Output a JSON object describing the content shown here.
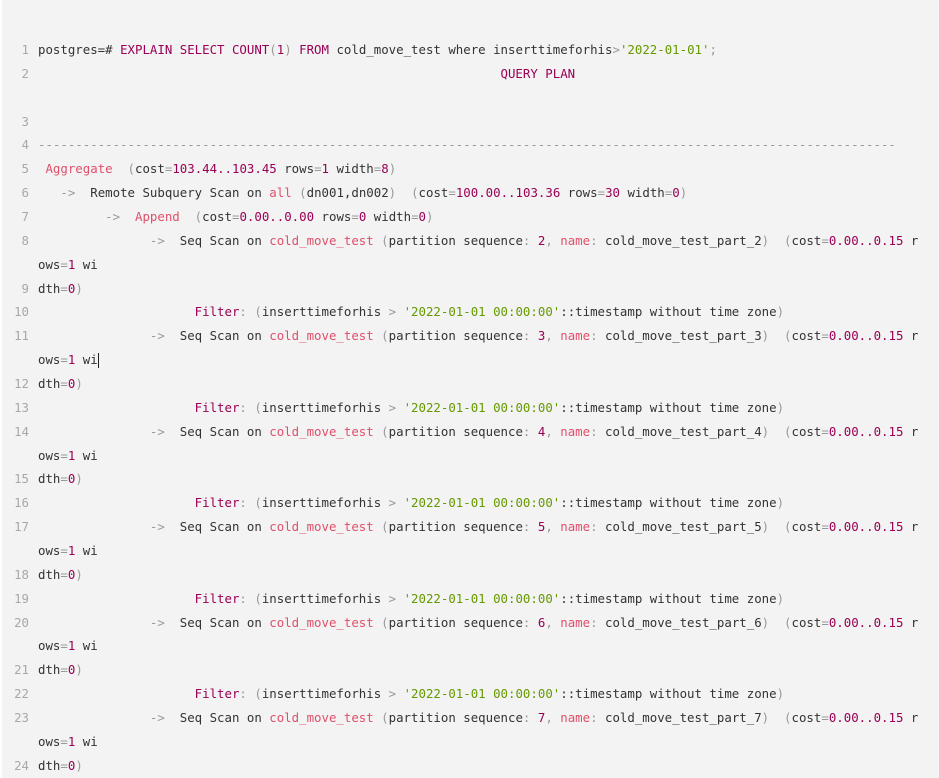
{
  "colors": {
    "background": "#f3f3f3",
    "keyword": "#990055",
    "function": "#e0506a",
    "number": "#990055",
    "string": "#669900",
    "punctuation": "#999999",
    "text": "#333333"
  },
  "cursor": {
    "line": "11",
    "row": 1
  },
  "lines": [
    {
      "n": "1",
      "rows": [
        [
          [
            "t",
            "postgres=# "
          ],
          [
            "k",
            "EXPLAIN SELECT COUNT"
          ],
          [
            "p",
            "("
          ],
          [
            "n",
            "1"
          ],
          [
            "p",
            ")"
          ],
          [
            "t",
            " "
          ],
          [
            "k",
            "FROM"
          ],
          [
            "t",
            " cold_move_test where inserttimeforhis"
          ],
          [
            "p",
            ">"
          ],
          [
            "s",
            "'2022-01-01'"
          ],
          [
            "p",
            ";"
          ]
        ]
      ]
    },
    {
      "n": "2",
      "rows": [
        [
          [
            "t",
            "                                                              "
          ],
          [
            "k",
            "QUERY PLAN"
          ]
        ],
        []
      ]
    },
    {
      "n": "3",
      "rows": [
        []
      ]
    },
    {
      "n": "4",
      "rows": [
        [
          [
            "p",
            "-------------------------------------------------------------------------------------------------------------------"
          ]
        ]
      ]
    },
    {
      "n": "5",
      "rows": [
        [
          [
            "t",
            " "
          ],
          [
            "f",
            "Aggregate"
          ],
          [
            "t",
            "  "
          ],
          [
            "p",
            "("
          ],
          [
            "t",
            "cost"
          ],
          [
            "p",
            "="
          ],
          [
            "n",
            "103.44..103.45"
          ],
          [
            "t",
            " rows"
          ],
          [
            "p",
            "="
          ],
          [
            "n",
            "1"
          ],
          [
            "t",
            " width"
          ],
          [
            "p",
            "="
          ],
          [
            "n",
            "8"
          ],
          [
            "p",
            ")"
          ]
        ]
      ]
    },
    {
      "n": "6",
      "rows": [
        [
          [
            "t",
            "   "
          ],
          [
            "p",
            "->"
          ],
          [
            "t",
            "  Remote Subquery Scan on "
          ],
          [
            "f",
            "all"
          ],
          [
            "t",
            " "
          ],
          [
            "p",
            "("
          ],
          [
            "t",
            "dn001,dn002"
          ],
          [
            "p",
            ")"
          ],
          [
            "t",
            "  "
          ],
          [
            "p",
            "("
          ],
          [
            "t",
            "cost"
          ],
          [
            "p",
            "="
          ],
          [
            "n",
            "100.00..103.36"
          ],
          [
            "t",
            " rows"
          ],
          [
            "p",
            "="
          ],
          [
            "n",
            "30"
          ],
          [
            "t",
            " width"
          ],
          [
            "p",
            "="
          ],
          [
            "n",
            "0"
          ],
          [
            "p",
            ")"
          ]
        ]
      ]
    },
    {
      "n": "7",
      "rows": [
        [
          [
            "t",
            "         "
          ],
          [
            "p",
            "->"
          ],
          [
            "t",
            "  "
          ],
          [
            "f",
            "Append"
          ],
          [
            "t",
            "  "
          ],
          [
            "p",
            "("
          ],
          [
            "t",
            "cost"
          ],
          [
            "p",
            "="
          ],
          [
            "n",
            "0.00..0.00"
          ],
          [
            "t",
            " rows"
          ],
          [
            "p",
            "="
          ],
          [
            "n",
            "0"
          ],
          [
            "t",
            " width"
          ],
          [
            "p",
            "="
          ],
          [
            "n",
            "0"
          ],
          [
            "p",
            ")"
          ]
        ]
      ]
    },
    {
      "n": "8",
      "rows": [
        [
          [
            "t",
            "               "
          ],
          [
            "p",
            "->"
          ],
          [
            "t",
            "  Seq Scan on "
          ],
          [
            "f",
            "cold_move_test"
          ],
          [
            "t",
            " "
          ],
          [
            "p",
            "("
          ],
          [
            "t",
            "partition sequence"
          ],
          [
            "p",
            ": "
          ],
          [
            "n",
            "2"
          ],
          [
            "p",
            ", "
          ],
          [
            "f",
            "name"
          ],
          [
            "p",
            ": "
          ],
          [
            "t",
            "cold_move_test_part_2"
          ],
          [
            "p",
            ")"
          ],
          [
            "t",
            "  "
          ],
          [
            "p",
            "("
          ],
          [
            "t",
            "cost"
          ],
          [
            "p",
            "="
          ],
          [
            "n",
            "0.00..0.15"
          ],
          [
            "t",
            " r"
          ]
        ],
        [
          [
            "t",
            "ows"
          ],
          [
            "p",
            "="
          ],
          [
            "n",
            "1"
          ],
          [
            "t",
            " wi"
          ]
        ]
      ]
    },
    {
      "n": "9",
      "rows": [
        [
          [
            "t",
            "dth"
          ],
          [
            "p",
            "="
          ],
          [
            "n",
            "0"
          ],
          [
            "p",
            ")"
          ]
        ]
      ]
    },
    {
      "n": "10",
      "rows": [
        [
          [
            "t",
            "                     "
          ],
          [
            "k",
            "Filter"
          ],
          [
            "p",
            ": ("
          ],
          [
            "t",
            "inserttimeforhis "
          ],
          [
            "p",
            ">"
          ],
          [
            "t",
            " "
          ],
          [
            "s",
            "'2022-01-01 00:00:00'"
          ],
          [
            "t",
            "::timestamp without time zone"
          ],
          [
            "p",
            ")"
          ]
        ]
      ]
    },
    {
      "n": "11",
      "rows": [
        [
          [
            "t",
            "               "
          ],
          [
            "p",
            "->"
          ],
          [
            "t",
            "  Seq Scan on "
          ],
          [
            "f",
            "cold_move_test"
          ],
          [
            "t",
            " "
          ],
          [
            "p",
            "("
          ],
          [
            "t",
            "partition sequence"
          ],
          [
            "p",
            ": "
          ],
          [
            "n",
            "3"
          ],
          [
            "p",
            ", "
          ],
          [
            "f",
            "name"
          ],
          [
            "p",
            ": "
          ],
          [
            "t",
            "cold_move_test_part_3"
          ],
          [
            "p",
            ")"
          ],
          [
            "t",
            "  "
          ],
          [
            "p",
            "("
          ],
          [
            "t",
            "cost"
          ],
          [
            "p",
            "="
          ],
          [
            "n",
            "0.00..0.15"
          ],
          [
            "t",
            " r"
          ]
        ],
        [
          [
            "t",
            "ows"
          ],
          [
            "p",
            "="
          ],
          [
            "n",
            "1"
          ],
          [
            "t",
            " wi"
          ]
        ]
      ]
    },
    {
      "n": "12",
      "rows": [
        [
          [
            "t",
            "dth"
          ],
          [
            "p",
            "="
          ],
          [
            "n",
            "0"
          ],
          [
            "p",
            ")"
          ]
        ]
      ]
    },
    {
      "n": "13",
      "rows": [
        [
          [
            "t",
            "                     "
          ],
          [
            "k",
            "Filter"
          ],
          [
            "p",
            ": ("
          ],
          [
            "t",
            "inserttimeforhis "
          ],
          [
            "p",
            ">"
          ],
          [
            "t",
            " "
          ],
          [
            "s",
            "'2022-01-01 00:00:00'"
          ],
          [
            "t",
            "::timestamp without time zone"
          ],
          [
            "p",
            ")"
          ]
        ]
      ]
    },
    {
      "n": "14",
      "rows": [
        [
          [
            "t",
            "               "
          ],
          [
            "p",
            "->"
          ],
          [
            "t",
            "  Seq Scan on "
          ],
          [
            "f",
            "cold_move_test"
          ],
          [
            "t",
            " "
          ],
          [
            "p",
            "("
          ],
          [
            "t",
            "partition sequence"
          ],
          [
            "p",
            ": "
          ],
          [
            "n",
            "4"
          ],
          [
            "p",
            ", "
          ],
          [
            "f",
            "name"
          ],
          [
            "p",
            ": "
          ],
          [
            "t",
            "cold_move_test_part_4"
          ],
          [
            "p",
            ")"
          ],
          [
            "t",
            "  "
          ],
          [
            "p",
            "("
          ],
          [
            "t",
            "cost"
          ],
          [
            "p",
            "="
          ],
          [
            "n",
            "0.00..0.15"
          ],
          [
            "t",
            " r"
          ]
        ],
        [
          [
            "t",
            "ows"
          ],
          [
            "p",
            "="
          ],
          [
            "n",
            "1"
          ],
          [
            "t",
            " wi"
          ]
        ]
      ]
    },
    {
      "n": "15",
      "rows": [
        [
          [
            "t",
            "dth"
          ],
          [
            "p",
            "="
          ],
          [
            "n",
            "0"
          ],
          [
            "p",
            ")"
          ]
        ]
      ]
    },
    {
      "n": "16",
      "rows": [
        [
          [
            "t",
            "                     "
          ],
          [
            "k",
            "Filter"
          ],
          [
            "p",
            ": ("
          ],
          [
            "t",
            "inserttimeforhis "
          ],
          [
            "p",
            ">"
          ],
          [
            "t",
            " "
          ],
          [
            "s",
            "'2022-01-01 00:00:00'"
          ],
          [
            "t",
            "::timestamp without time zone"
          ],
          [
            "p",
            ")"
          ]
        ]
      ]
    },
    {
      "n": "17",
      "rows": [
        [
          [
            "t",
            "               "
          ],
          [
            "p",
            "->"
          ],
          [
            "t",
            "  Seq Scan on "
          ],
          [
            "f",
            "cold_move_test"
          ],
          [
            "t",
            " "
          ],
          [
            "p",
            "("
          ],
          [
            "t",
            "partition sequence"
          ],
          [
            "p",
            ": "
          ],
          [
            "n",
            "5"
          ],
          [
            "p",
            ", "
          ],
          [
            "f",
            "name"
          ],
          [
            "p",
            ": "
          ],
          [
            "t",
            "cold_move_test_part_5"
          ],
          [
            "p",
            ")"
          ],
          [
            "t",
            "  "
          ],
          [
            "p",
            "("
          ],
          [
            "t",
            "cost"
          ],
          [
            "p",
            "="
          ],
          [
            "n",
            "0.00..0.15"
          ],
          [
            "t",
            " r"
          ]
        ],
        [
          [
            "t",
            "ows"
          ],
          [
            "p",
            "="
          ],
          [
            "n",
            "1"
          ],
          [
            "t",
            " wi"
          ]
        ]
      ]
    },
    {
      "n": "18",
      "rows": [
        [
          [
            "t",
            "dth"
          ],
          [
            "p",
            "="
          ],
          [
            "n",
            "0"
          ],
          [
            "p",
            ")"
          ]
        ]
      ]
    },
    {
      "n": "19",
      "rows": [
        [
          [
            "t",
            "                     "
          ],
          [
            "k",
            "Filter"
          ],
          [
            "p",
            ": ("
          ],
          [
            "t",
            "inserttimeforhis "
          ],
          [
            "p",
            ">"
          ],
          [
            "t",
            " "
          ],
          [
            "s",
            "'2022-01-01 00:00:00'"
          ],
          [
            "t",
            "::timestamp without time zone"
          ],
          [
            "p",
            ")"
          ]
        ]
      ]
    },
    {
      "n": "20",
      "rows": [
        [
          [
            "t",
            "               "
          ],
          [
            "p",
            "->"
          ],
          [
            "t",
            "  Seq Scan on "
          ],
          [
            "f",
            "cold_move_test"
          ],
          [
            "t",
            " "
          ],
          [
            "p",
            "("
          ],
          [
            "t",
            "partition sequence"
          ],
          [
            "p",
            ": "
          ],
          [
            "n",
            "6"
          ],
          [
            "p",
            ", "
          ],
          [
            "f",
            "name"
          ],
          [
            "p",
            ": "
          ],
          [
            "t",
            "cold_move_test_part_6"
          ],
          [
            "p",
            ")"
          ],
          [
            "t",
            "  "
          ],
          [
            "p",
            "("
          ],
          [
            "t",
            "cost"
          ],
          [
            "p",
            "="
          ],
          [
            "n",
            "0.00..0.15"
          ],
          [
            "t",
            " r"
          ]
        ],
        [
          [
            "t",
            "ows"
          ],
          [
            "p",
            "="
          ],
          [
            "n",
            "1"
          ],
          [
            "t",
            " wi"
          ]
        ]
      ]
    },
    {
      "n": "21",
      "rows": [
        [
          [
            "t",
            "dth"
          ],
          [
            "p",
            "="
          ],
          [
            "n",
            "0"
          ],
          [
            "p",
            ")"
          ]
        ]
      ]
    },
    {
      "n": "22",
      "rows": [
        [
          [
            "t",
            "                     "
          ],
          [
            "k",
            "Filter"
          ],
          [
            "p",
            ": ("
          ],
          [
            "t",
            "inserttimeforhis "
          ],
          [
            "p",
            ">"
          ],
          [
            "t",
            " "
          ],
          [
            "s",
            "'2022-01-01 00:00:00'"
          ],
          [
            "t",
            "::timestamp without time zone"
          ],
          [
            "p",
            ")"
          ]
        ]
      ]
    },
    {
      "n": "23",
      "rows": [
        [
          [
            "t",
            "               "
          ],
          [
            "p",
            "->"
          ],
          [
            "t",
            "  Seq Scan on "
          ],
          [
            "f",
            "cold_move_test"
          ],
          [
            "t",
            " "
          ],
          [
            "p",
            "("
          ],
          [
            "t",
            "partition sequence"
          ],
          [
            "p",
            ": "
          ],
          [
            "n",
            "7"
          ],
          [
            "p",
            ", "
          ],
          [
            "f",
            "name"
          ],
          [
            "p",
            ": "
          ],
          [
            "t",
            "cold_move_test_part_7"
          ],
          [
            "p",
            ")"
          ],
          [
            "t",
            "  "
          ],
          [
            "p",
            "("
          ],
          [
            "t",
            "cost"
          ],
          [
            "p",
            "="
          ],
          [
            "n",
            "0.00..0.15"
          ],
          [
            "t",
            " r"
          ]
        ],
        [
          [
            "t",
            "ows"
          ],
          [
            "p",
            "="
          ],
          [
            "n",
            "1"
          ],
          [
            "t",
            " wi"
          ]
        ]
      ]
    },
    {
      "n": "24",
      "rows": [
        [
          [
            "t",
            "dth"
          ],
          [
            "p",
            "="
          ],
          [
            "n",
            "0"
          ],
          [
            "p",
            ")"
          ]
        ]
      ]
    }
  ]
}
